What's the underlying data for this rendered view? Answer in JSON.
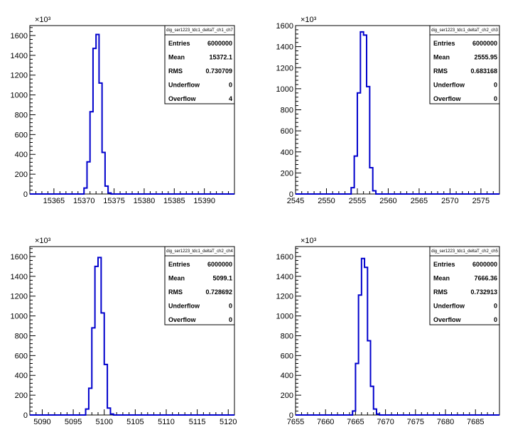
{
  "chart_data": [
    {
      "type": "histogram",
      "stats": {
        "title": "dig_ser1223_tdc1_deltaT_ch1_ch7",
        "rows": [
          {
            "label": "Entries",
            "value": "6000000"
          },
          {
            "label": "Mean",
            "value": "15372.1"
          },
          {
            "label": "RMS",
            "value": "0.730709"
          },
          {
            "label": "Underflow",
            "value": "0"
          },
          {
            "label": "Overflow",
            "value": "4"
          }
        ]
      },
      "y_exponent": "×10³",
      "xlim": [
        15361,
        15395
      ],
      "ylim": [
        0,
        1700
      ],
      "x_ticks": [
        15365,
        15370,
        15375,
        15380,
        15385,
        15390
      ],
      "y_ticks": [
        0,
        200,
        400,
        600,
        800,
        1000,
        1200,
        1400,
        1600
      ],
      "bin_width": 0.5,
      "bins": [
        {
          "x": 15369.5,
          "y": 0
        },
        {
          "x": 15370.0,
          "y": 60
        },
        {
          "x": 15370.5,
          "y": 325
        },
        {
          "x": 15371.0,
          "y": 830
        },
        {
          "x": 15371.5,
          "y": 1470
        },
        {
          "x": 15372.0,
          "y": 1610
        },
        {
          "x": 15372.5,
          "y": 1120
        },
        {
          "x": 15373.0,
          "y": 420
        },
        {
          "x": 15373.5,
          "y": 80
        },
        {
          "x": 15374.0,
          "y": 10
        },
        {
          "x": 15374.5,
          "y": 0
        }
      ]
    },
    {
      "type": "histogram",
      "stats": {
        "title": "dig_ser1223_tdc1_deltaT_ch2_ch3",
        "rows": [
          {
            "label": "Entries",
            "value": "6000000"
          },
          {
            "label": "Mean",
            "value": "2555.95"
          },
          {
            "label": "RMS",
            "value": "0.683168"
          },
          {
            "label": "Underflow",
            "value": "0"
          },
          {
            "label": "Overflow",
            "value": "0"
          }
        ]
      },
      "y_exponent": "×10³",
      "xlim": [
        2545,
        2578
      ],
      "ylim": [
        0,
        1600
      ],
      "x_ticks": [
        2545,
        2550,
        2555,
        2560,
        2565,
        2570,
        2575
      ],
      "y_ticks": [
        0,
        200,
        400,
        600,
        800,
        1000,
        1200,
        1400,
        1600
      ],
      "bin_width": 0.5,
      "bins": [
        {
          "x": 2553.5,
          "y": 0
        },
        {
          "x": 2554.0,
          "y": 60
        },
        {
          "x": 2554.5,
          "y": 360
        },
        {
          "x": 2555.0,
          "y": 960
        },
        {
          "x": 2555.5,
          "y": 1540
        },
        {
          "x": 2556.0,
          "y": 1510
        },
        {
          "x": 2556.5,
          "y": 1020
        },
        {
          "x": 2557.0,
          "y": 250
        },
        {
          "x": 2557.5,
          "y": 30
        },
        {
          "x": 2558.0,
          "y": 0
        }
      ]
    },
    {
      "type": "histogram",
      "stats": {
        "title": "dig_ser1223_tdc1_deltaT_ch2_ch4",
        "rows": [
          {
            "label": "Entries",
            "value": "6000000"
          },
          {
            "label": "Mean",
            "value": "5099.1"
          },
          {
            "label": "RMS",
            "value": "0.728692"
          },
          {
            "label": "Underflow",
            "value": "0"
          },
          {
            "label": "Overflow",
            "value": "0"
          }
        ]
      },
      "y_exponent": "×10³",
      "xlim": [
        5088,
        5121
      ],
      "ylim": [
        0,
        1700
      ],
      "x_ticks": [
        5090,
        5095,
        5100,
        5105,
        5110,
        5115,
        5120
      ],
      "y_ticks": [
        0,
        200,
        400,
        600,
        800,
        1000,
        1200,
        1400,
        1600
      ],
      "bin_width": 0.5,
      "bins": [
        {
          "x": 5096.5,
          "y": 0
        },
        {
          "x": 5097.0,
          "y": 60
        },
        {
          "x": 5097.5,
          "y": 270
        },
        {
          "x": 5098.0,
          "y": 880
        },
        {
          "x": 5098.5,
          "y": 1500
        },
        {
          "x": 5099.0,
          "y": 1590
        },
        {
          "x": 5099.5,
          "y": 1030
        },
        {
          "x": 5100.0,
          "y": 510
        },
        {
          "x": 5100.5,
          "y": 70
        },
        {
          "x": 5101.0,
          "y": 10
        },
        {
          "x": 5101.5,
          "y": 0
        }
      ]
    },
    {
      "type": "histogram",
      "stats": {
        "title": "dig_ser1223_tdc1_deltaT_ch2_ch5",
        "rows": [
          {
            "label": "Entries",
            "value": "6000000"
          },
          {
            "label": "Mean",
            "value": "7666.36"
          },
          {
            "label": "RMS",
            "value": "0.732913"
          },
          {
            "label": "Underflow",
            "value": "0"
          },
          {
            "label": "Overflow",
            "value": "0"
          }
        ]
      },
      "y_exponent": "×10³",
      "xlim": [
        7655,
        7689
      ],
      "ylim": [
        0,
        1700
      ],
      "x_ticks": [
        7655,
        7660,
        7665,
        7670,
        7675,
        7680,
        7685
      ],
      "y_ticks": [
        0,
        200,
        400,
        600,
        800,
        1000,
        1200,
        1400,
        1600
      ],
      "bin_width": 0.5,
      "bins": [
        {
          "x": 7664.0,
          "y": 0
        },
        {
          "x": 7664.5,
          "y": 40
        },
        {
          "x": 7665.0,
          "y": 520
        },
        {
          "x": 7665.5,
          "y": 1210
        },
        {
          "x": 7666.0,
          "y": 1580
        },
        {
          "x": 7666.5,
          "y": 1490
        },
        {
          "x": 7667.0,
          "y": 750
        },
        {
          "x": 7667.5,
          "y": 290
        },
        {
          "x": 7668.0,
          "y": 60
        },
        {
          "x": 7668.5,
          "y": 10
        },
        {
          "x": 7669.0,
          "y": 0
        }
      ]
    }
  ],
  "colors": {
    "line": "#0000cc",
    "frame": "#000000",
    "background": "#ffffff"
  }
}
